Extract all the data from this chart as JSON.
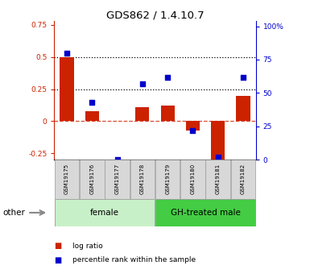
{
  "title": "GDS862 / 1.4.10.7",
  "samples": [
    "GSM19175",
    "GSM19176",
    "GSM19177",
    "GSM19178",
    "GSM19179",
    "GSM19180",
    "GSM19181",
    "GSM19182"
  ],
  "log_ratio": [
    0.5,
    0.08,
    0.0,
    0.11,
    0.12,
    -0.07,
    -0.3,
    0.2
  ],
  "percentile_rank_pct": [
    80,
    43,
    0,
    57,
    62,
    22,
    2,
    62
  ],
  "groups": [
    {
      "label": "female",
      "start": 0,
      "end": 4,
      "facecolor": "#c8f0c8"
    },
    {
      "label": "GH-treated male",
      "start": 4,
      "end": 8,
      "facecolor": "#44cc44"
    }
  ],
  "bar_color": "#cc2200",
  "dot_color": "#0000cc",
  "ylim_left": [
    -0.3,
    0.78
  ],
  "ylim_right": [
    0,
    104
  ],
  "yticks_left": [
    -0.25,
    0.0,
    0.25,
    0.5,
    0.75
  ],
  "yticks_right": [
    0,
    25,
    50,
    75,
    100
  ],
  "ytick_labels_left": [
    "-0.25",
    "0",
    "0.25",
    "0.5",
    "0.75"
  ],
  "ytick_labels_right": [
    "0",
    "25",
    "50",
    "75",
    "100%"
  ],
  "hlines_dotted": [
    0.5,
    0.25
  ],
  "hline_zero_color": "#cc2200",
  "bar_width": 0.55,
  "sample_box_color": "#d8d8d8",
  "legend_items": [
    {
      "label": "log ratio",
      "color": "#cc2200"
    },
    {
      "label": "percentile rank within the sample",
      "color": "#0000cc"
    }
  ],
  "other_label": "other"
}
